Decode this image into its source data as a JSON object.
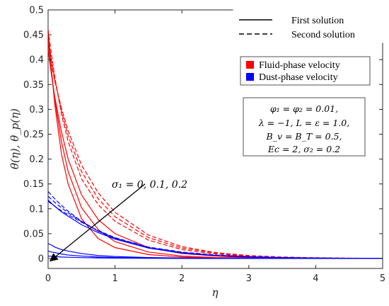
{
  "chart_data": {
    "type": "line",
    "xlabel": "η",
    "ylabel": "θ(η), θ_p(η)",
    "xlim": [
      0,
      5
    ],
    "ylim": [
      -0.02,
      0.5
    ],
    "xticks": [
      0,
      1,
      2,
      3,
      4,
      5
    ],
    "xtick_labels": [
      "0",
      "1",
      "2",
      "3",
      "4",
      "5"
    ],
    "yticks": [
      0,
      0.05,
      0.1,
      0.15,
      0.2,
      0.25,
      0.3,
      0.35,
      0.4,
      0.45,
      0.5
    ],
    "ytick_labels": [
      "0",
      "0.05",
      "0.1",
      "0.15",
      "0.2",
      "0.25",
      "0.3",
      "0.35",
      "0.4",
      "0.45",
      "0.5"
    ],
    "grid": false,
    "colors": {
      "fluid": "#ff0000",
      "dust": "#0000ff",
      "axis": "#262626"
    },
    "x": [
      0,
      0.05,
      0.1,
      0.2,
      0.3,
      0.5,
      0.75,
      1,
      1.5,
      2,
      2.5,
      3,
      3.5,
      4,
      4.5,
      5
    ],
    "series": [
      {
        "group": "fluid",
        "style": "solid",
        "values": [
          0.46,
          0.38,
          0.31,
          0.21,
          0.15,
          0.08,
          0.04,
          0.022,
          0.008,
          0.003,
          0.001,
          0.0005,
          0.0002,
          0.0001,
          0.0,
          0.0
        ]
      },
      {
        "group": "fluid",
        "style": "solid",
        "values": [
          0.44,
          0.375,
          0.32,
          0.235,
          0.175,
          0.102,
          0.058,
          0.034,
          0.013,
          0.005,
          0.002,
          0.001,
          0.0004,
          0.0002,
          0.0001,
          0.0
        ]
      },
      {
        "group": "fluid",
        "style": "solid",
        "values": [
          0.42,
          0.37,
          0.325,
          0.255,
          0.2,
          0.128,
          0.078,
          0.05,
          0.022,
          0.01,
          0.005,
          0.002,
          0.001,
          0.0005,
          0.0002,
          0.0001
        ]
      },
      {
        "group": "fluid",
        "style": "dashed",
        "values": [
          0.46,
          0.41,
          0.365,
          0.29,
          0.235,
          0.16,
          0.108,
          0.075,
          0.037,
          0.018,
          0.009,
          0.004,
          0.002,
          0.001,
          0.0005,
          0.0002
        ]
      },
      {
        "group": "fluid",
        "style": "dashed",
        "values": [
          0.44,
          0.4,
          0.36,
          0.297,
          0.247,
          0.175,
          0.12,
          0.084,
          0.042,
          0.021,
          0.011,
          0.005,
          0.0025,
          0.0012,
          0.0006,
          0.0003
        ]
      },
      {
        "group": "fluid",
        "style": "dashed",
        "values": [
          0.42,
          0.39,
          0.357,
          0.302,
          0.257,
          0.188,
          0.132,
          0.093,
          0.047,
          0.024,
          0.012,
          0.006,
          0.003,
          0.0015,
          0.0007,
          0.0004
        ]
      },
      {
        "group": "dust",
        "style": "solid",
        "values": [
          0.03,
          0.027,
          0.023,
          0.018,
          0.015,
          0.01,
          0.006,
          0.004,
          0.002,
          0.001,
          0.0005,
          0.0002,
          0.0001,
          0.0,
          0.0,
          0.0
        ]
      },
      {
        "group": "dust",
        "style": "solid",
        "values": [
          0.015,
          0.013,
          0.012,
          0.009,
          0.007,
          0.005,
          0.003,
          0.002,
          0.001,
          0.0005,
          0.0002,
          0.0001,
          0.0,
          0.0,
          0.0,
          0.0
        ]
      },
      {
        "group": "dust",
        "style": "solid",
        "values": [
          0.005,
          0.0045,
          0.004,
          0.003,
          0.0025,
          0.0018,
          0.0012,
          0.0008,
          0.0004,
          0.0002,
          0.0001,
          0.0,
          0.0,
          0.0,
          0.0,
          0.0
        ]
      },
      {
        "group": "dust",
        "style": "dashed",
        "values": [
          0.135,
          0.127,
          0.12,
          0.107,
          0.095,
          0.075,
          0.055,
          0.04,
          0.021,
          0.011,
          0.006,
          0.003,
          0.0015,
          0.0008,
          0.0004,
          0.0002
        ]
      },
      {
        "group": "dust",
        "style": "dashed",
        "values": [
          0.125,
          0.119,
          0.113,
          0.102,
          0.092,
          0.074,
          0.055,
          0.041,
          0.022,
          0.012,
          0.006,
          0.003,
          0.0016,
          0.0008,
          0.0004,
          0.0002
        ]
      },
      {
        "group": "dust",
        "style": "dashed",
        "values": [
          0.115,
          0.11,
          0.105,
          0.096,
          0.088,
          0.073,
          0.056,
          0.042,
          0.023,
          0.013,
          0.007,
          0.004,
          0.002,
          0.001,
          0.0005,
          0.0003
        ]
      },
      {
        "group": "dust",
        "style": "solid",
        "values": [
          0.118,
          0.111,
          0.105,
          0.094,
          0.085,
          0.068,
          0.052,
          0.039,
          0.021,
          0.011,
          0.006,
          0.003,
          0.0015,
          0.0008,
          0.0004,
          0.0002
        ]
      }
    ],
    "legend_lines": {
      "position": "top-right",
      "items": [
        {
          "label": "First solution",
          "style": "solid"
        },
        {
          "label": "Second solution",
          "style": "dashed"
        }
      ]
    },
    "legend_colors": {
      "items": [
        {
          "label": "Fluid-phase velocity",
          "color": "#ff0000"
        },
        {
          "label": "Dust-phase velocity",
          "color": "#0000ff"
        }
      ]
    },
    "param_box": {
      "lines": [
        "φ₁ = φ₂ = 0.01,",
        "λ = −1, L = ε = 1.0,",
        "B_v = B_T = 0.5,",
        "Ec = 2, σ₂ = 0.2"
      ]
    },
    "annotation": {
      "text": "σ₁ = 0, 0.1, 0.2",
      "arrow_from": [
        1.45,
        0.15
      ],
      "arrow_to": [
        0.03,
        -0.005
      ]
    }
  }
}
